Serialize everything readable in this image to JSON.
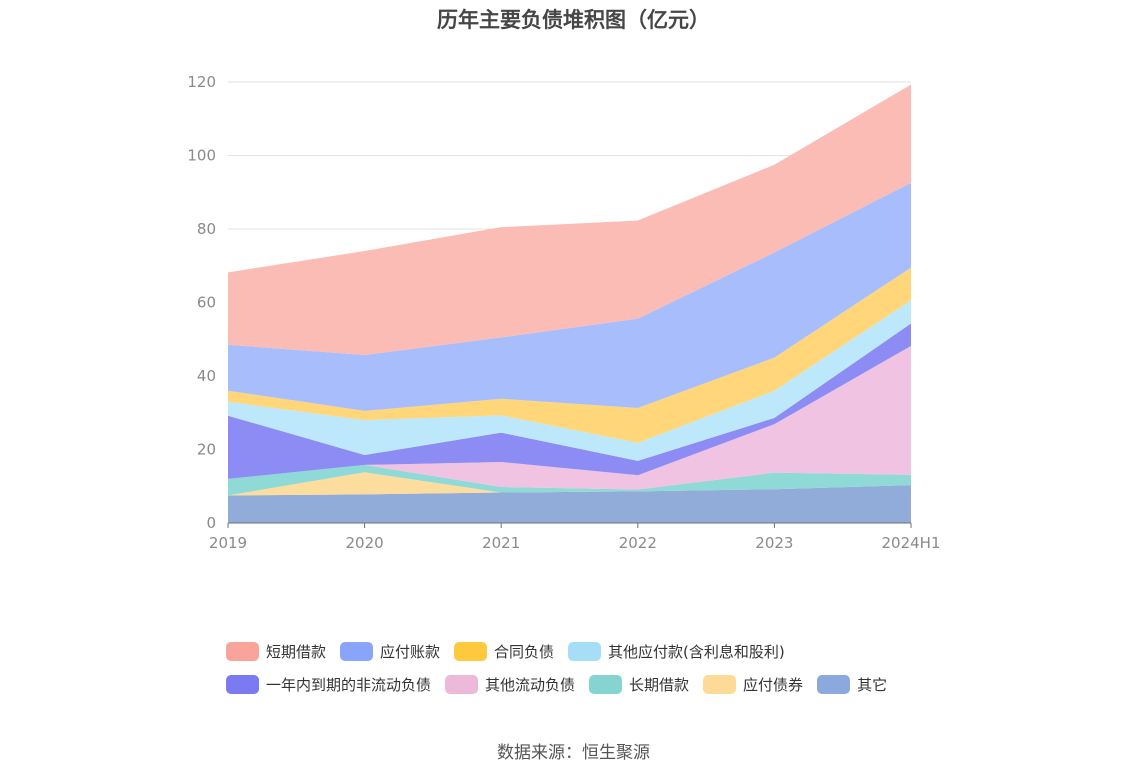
{
  "chart_data": {
    "type": "area",
    "stacked": true,
    "title": "历年主要负债堆积图（亿元）",
    "xlabel": "",
    "ylabel": "",
    "ylim": [
      0,
      120
    ],
    "yticks": [
      0,
      20,
      40,
      60,
      80,
      100,
      120
    ],
    "categories": [
      "2019",
      "2020",
      "2021",
      "2022",
      "2023",
      "2024H1"
    ],
    "grid": true,
    "legend_position": "bottom",
    "series": [
      {
        "name": "其它",
        "color": "#91acd9",
        "values": [
          7.5,
          7.8,
          8.3,
          8.6,
          9.2,
          10.3
        ]
      },
      {
        "name": "应付债券",
        "color": "#fddd9e",
        "values": [
          0.0,
          6.0,
          0.0,
          0.0,
          0.0,
          0.0
        ]
      },
      {
        "name": "长期借款",
        "color": "#8fd9d6",
        "values": [
          4.5,
          2.0,
          1.5,
          0.5,
          4.5,
          2.8
        ]
      },
      {
        "name": "其他流动负债",
        "color": "#efc3e1",
        "values": [
          0.0,
          0.0,
          6.8,
          3.9,
          13.2,
          35.1
        ]
      },
      {
        "name": "一年内到期的非流动负债",
        "color": "#8c8cf4",
        "values": [
          17.2,
          2.7,
          8.0,
          3.9,
          1.7,
          6.1
        ]
      },
      {
        "name": "其他应付款(含利息和股利)",
        "color": "#bde7fa",
        "values": [
          3.8,
          9.5,
          4.7,
          4.9,
          7.4,
          6.3
        ]
      },
      {
        "name": "合同负债",
        "color": "#ffd77a",
        "values": [
          3.0,
          2.5,
          4.5,
          9.5,
          9.0,
          8.9
        ]
      },
      {
        "name": "应付账款",
        "color": "#a8bdfc",
        "values": [
          12.5,
          15.2,
          16.7,
          24.3,
          28.6,
          23.1
        ]
      },
      {
        "name": "短期借款",
        "color": "#fcbcb6",
        "values": [
          19.7,
          28.3,
          30.0,
          26.7,
          23.9,
          26.7
        ]
      }
    ]
  },
  "legend": {
    "row1": [
      {
        "name": "短期借款",
        "color": "#f9a49b"
      },
      {
        "name": "应付账款",
        "color": "#88a4fb"
      },
      {
        "name": "合同负债",
        "color": "#ffc93d"
      },
      {
        "name": "其他应付款(含利息和股利)",
        "color": "#a6def8"
      }
    ],
    "row2": [
      {
        "name": "一年内到期的非流动负债",
        "color": "#7a7af1"
      },
      {
        "name": "其他流动负债",
        "color": "#ecb9da"
      },
      {
        "name": "长期借款",
        "color": "#85d4d1"
      },
      {
        "name": "应付债券",
        "color": "#fddb96"
      },
      {
        "name": "其它",
        "color": "#8ba9dc"
      }
    ]
  },
  "source": "数据来源：恒生聚源"
}
